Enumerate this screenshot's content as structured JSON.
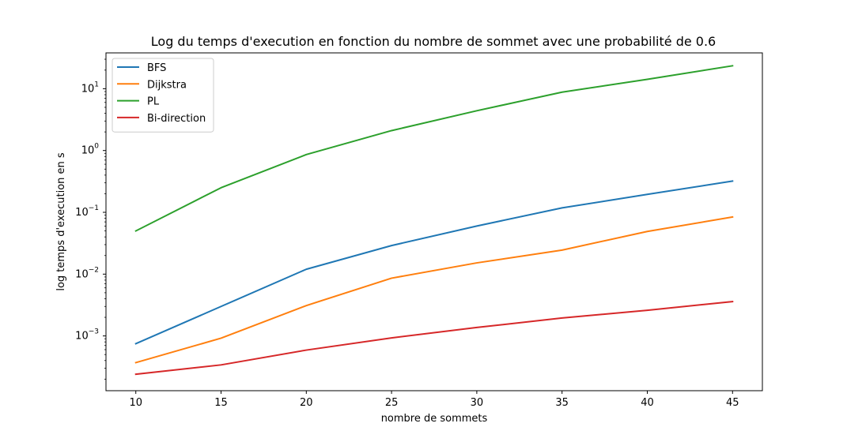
{
  "chart_data": {
    "type": "line",
    "title": "Log du temps d'execution en fonction du nombre de sommet avec une probabilité de 0.6",
    "xlabel": "nombre de sommets",
    "ylabel": "log temps d'execution en s",
    "yscale": "log",
    "xlim": [
      8.25,
      46.75
    ],
    "ylim": [
      0.00013,
      38
    ],
    "x": [
      10,
      15,
      20,
      25,
      30,
      35,
      40,
      45
    ],
    "xticks": [
      10,
      15,
      20,
      25,
      30,
      35,
      40,
      45
    ],
    "xtick_labels": [
      "10",
      "15",
      "20",
      "25",
      "30",
      "35",
      "40",
      "45"
    ],
    "yticks": [
      0.001,
      0.01,
      0.1,
      1,
      10
    ],
    "ytick_labels": [
      {
        "base": "10",
        "exp": "−3"
      },
      {
        "base": "10",
        "exp": "−2"
      },
      {
        "base": "10",
        "exp": "−1"
      },
      {
        "base": "10",
        "exp": "0"
      },
      {
        "base": "10",
        "exp": "1"
      }
    ],
    "grid": false,
    "legend_position": "top-left",
    "series": [
      {
        "name": "BFS",
        "color": "#1f77b4",
        "values": [
          0.00075,
          0.003,
          0.012,
          0.029,
          0.06,
          0.118,
          0.195,
          0.32
        ]
      },
      {
        "name": "Dijkstra",
        "color": "#ff7f0e",
        "values": [
          0.00037,
          0.00092,
          0.0031,
          0.0086,
          0.0152,
          0.0245,
          0.049,
          0.084
        ]
      },
      {
        "name": "PL",
        "color": "#2ca02c",
        "values": [
          0.05,
          0.25,
          0.86,
          2.1,
          4.4,
          8.8,
          14.2,
          23.5
        ]
      },
      {
        "name": "Bi-direction",
        "color": "#d62728",
        "values": [
          0.00024,
          0.00034,
          0.00059,
          0.00093,
          0.00137,
          0.00195,
          0.0026,
          0.0036
        ]
      }
    ]
  }
}
